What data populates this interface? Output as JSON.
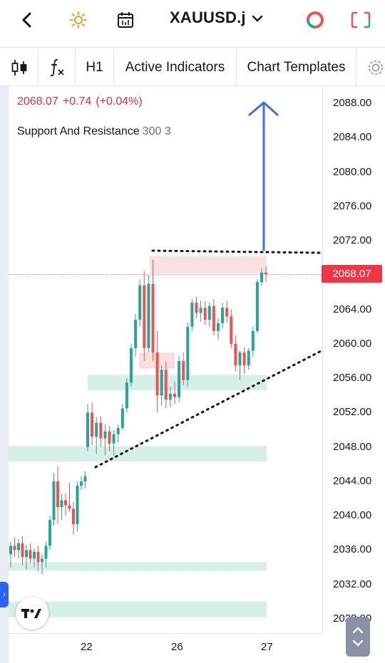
{
  "header": {
    "symbol": "XAUUSD.j",
    "back_icon": "chevron-left-icon",
    "theme_icon": "sun-icon",
    "calendar_icon": "calendar-icon",
    "dropdown_icon": "chevron-down-icon",
    "trade_icon": "trade-ring-icon",
    "layout_icon": "layout-icon"
  },
  "toolbar": {
    "candle_icon": "candlestick-icon",
    "indicator_icon": "fx-icon",
    "interval": "H1",
    "active_indicators": "Active Indicators",
    "chart_templates": "Chart Templates",
    "settings_icon": "gear-icon"
  },
  "legend": {
    "last_price": "2068.07",
    "change": "+0.74",
    "change_pct": "(+0.04%)",
    "indicator_name": "Support And Resistance",
    "indicator_params": "300 3"
  },
  "price_axis": [
    "2088.00",
    "2084.00",
    "2080.00",
    "2076.00",
    "2072.00",
    "2064.00",
    "2060.00",
    "2056.00",
    "2052.00",
    "2048.00",
    "2044.00",
    "2040.00",
    "2036.00",
    "2032.00",
    "2028.00"
  ],
  "current_price_tag": "2068.07",
  "time_axis": [
    "22",
    "26",
    "27"
  ],
  "colors": {
    "up": "#26a69a",
    "down": "#ef5350",
    "support_zone": "#d6efe9",
    "resistance_zone": "#fbe0e0",
    "arrow": "#3d6fe0",
    "price_tag": "#f23645"
  },
  "chart_data": {
    "type": "candlestick",
    "symbol": "XAUUSD.j",
    "interval": "H1",
    "ylim": [
      2027,
      2090
    ],
    "last_price": 2068.07,
    "support_zones": [
      [
        2028.2,
        2030.0
      ],
      [
        2033.6,
        2034.6
      ],
      [
        2046.3,
        2048.1
      ],
      [
        2054.6,
        2056.4
      ]
    ],
    "resistance_zones": [
      [
        2068.2,
        2070.2
      ],
      [
        2057.2,
        2058.9
      ]
    ],
    "candles": [
      [
        2035.5,
        2037.0,
        2034.0,
        2036.5
      ],
      [
        2036.5,
        2037.5,
        2035.2,
        2036.0
      ],
      [
        2036.0,
        2037.3,
        2035.0,
        2036.8
      ],
      [
        2036.8,
        2037.6,
        2034.2,
        2035.2
      ],
      [
        2035.2,
        2036.6,
        2033.8,
        2036.0
      ],
      [
        2036.0,
        2036.8,
        2034.5,
        2035.0
      ],
      [
        2035.0,
        2036.2,
        2034.0,
        2035.8
      ],
      [
        2035.8,
        2036.5,
        2033.5,
        2034.6
      ],
      [
        2034.6,
        2035.5,
        2033.2,
        2035.0
      ],
      [
        2035.0,
        2037.0,
        2034.0,
        2036.5
      ],
      [
        2036.5,
        2040.0,
        2036.0,
        2039.5
      ],
      [
        2039.5,
        2045.0,
        2038.8,
        2044.0
      ],
      [
        2044.0,
        2045.8,
        2039.0,
        2041.0
      ],
      [
        2041.0,
        2042.5,
        2039.5,
        2041.8
      ],
      [
        2041.8,
        2042.6,
        2040.0,
        2041.2
      ],
      [
        2041.2,
        2043.8,
        2040.5,
        2040.8
      ],
      [
        2040.8,
        2041.6,
        2037.8,
        2039.0
      ],
      [
        2039.0,
        2044.0,
        2038.2,
        2043.5
      ],
      [
        2043.5,
        2044.6,
        2043.0,
        2044.0
      ],
      [
        2044.0,
        2045.2,
        2043.2,
        2044.6
      ],
      [
        2048.0,
        2053.0,
        2047.5,
        2052.0
      ],
      [
        2052.0,
        2053.2,
        2048.2,
        2049.2
      ],
      [
        2049.2,
        2051.5,
        2047.2,
        2050.8
      ],
      [
        2050.8,
        2051.6,
        2048.0,
        2049.0
      ],
      [
        2049.0,
        2050.6,
        2047.0,
        2049.8
      ],
      [
        2049.8,
        2050.4,
        2047.5,
        2048.4
      ],
      [
        2048.4,
        2050.0,
        2047.0,
        2049.5
      ],
      [
        2049.5,
        2050.6,
        2048.5,
        2050.2
      ],
      [
        2050.2,
        2053.0,
        2050.0,
        2052.5
      ],
      [
        2052.5,
        2056.0,
        2052.0,
        2055.5
      ],
      [
        2055.5,
        2060.0,
        2055.0,
        2059.5
      ],
      [
        2059.5,
        2063.5,
        2058.5,
        2062.8
      ],
      [
        2062.8,
        2067.5,
        2062.0,
        2066.8
      ],
      [
        2066.8,
        2068.5,
        2058.0,
        2059.5
      ],
      [
        2059.5,
        2068.0,
        2059.0,
        2067.0
      ],
      [
        2067.0,
        2069.8,
        2058.0,
        2059.0
      ],
      [
        2059.0,
        2061.5,
        2052.0,
        2054.0
      ],
      [
        2054.0,
        2057.5,
        2052.8,
        2057.0
      ],
      [
        2057.0,
        2058.0,
        2052.5,
        2053.5
      ],
      [
        2053.5,
        2055.0,
        2052.6,
        2054.2
      ],
      [
        2054.2,
        2055.6,
        2053.0,
        2053.8
      ],
      [
        2053.8,
        2058.6,
        2053.2,
        2058.0
      ],
      [
        2058.0,
        2059.0,
        2055.2,
        2055.8
      ],
      [
        2055.8,
        2062.5,
        2055.0,
        2062.0
      ],
      [
        2062.0,
        2065.2,
        2061.5,
        2064.8
      ],
      [
        2064.8,
        2065.5,
        2063.0,
        2063.6
      ],
      [
        2063.6,
        2065.0,
        2062.6,
        2064.2
      ],
      [
        2064.2,
        2065.0,
        2062.2,
        2062.8
      ],
      [
        2062.8,
        2064.8,
        2062.0,
        2064.4
      ],
      [
        2064.4,
        2065.2,
        2061.0,
        2061.5
      ],
      [
        2061.5,
        2063.0,
        2060.5,
        2062.4
      ],
      [
        2062.4,
        2064.8,
        2061.8,
        2064.2
      ],
      [
        2064.2,
        2065.0,
        2062.5,
        2063.2
      ],
      [
        2063.2,
        2064.0,
        2059.5,
        2060.0
      ],
      [
        2060.0,
        2061.0,
        2056.8,
        2057.5
      ],
      [
        2057.5,
        2059.2,
        2055.8,
        2059.0
      ],
      [
        2059.0,
        2059.6,
        2056.5,
        2057.5
      ],
      [
        2057.5,
        2059.5,
        2057.0,
        2059.2
      ],
      [
        2059.2,
        2062.0,
        2058.5,
        2061.5
      ],
      [
        2061.5,
        2067.5,
        2061.2,
        2067.2
      ],
      [
        2067.2,
        2068.8,
        2066.8,
        2068.3
      ],
      [
        2068.3,
        2069.0,
        2067.2,
        2068.07
      ]
    ]
  }
}
